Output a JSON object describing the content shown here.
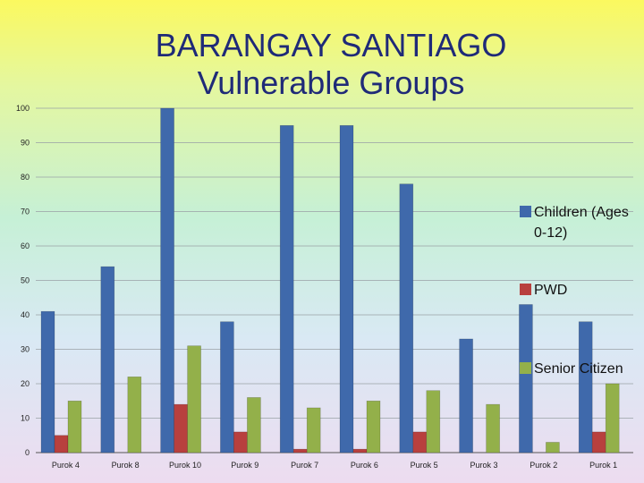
{
  "slide": {
    "title_line1": "BARANGAY SANTIAGO",
    "title_line2": "Vulnerable Groups"
  },
  "colors": {
    "children": "#3f69ab",
    "pwd": "#b8403e",
    "senior": "#93b04a"
  },
  "chart_data": {
    "type": "bar",
    "title": "BARANGAY SANTIAGO Vulnerable Groups",
    "categories": [
      "Purok 4",
      "Purok 8",
      "Purok 10",
      "Purok 9",
      "Purok 7",
      "Purok 6",
      "Purok 5",
      "Purok 3",
      "Purok 2",
      "Purok  1"
    ],
    "series": [
      {
        "name": "Children  (Ages 0-12)",
        "legend_lines": [
          "Children  (Ages",
          "0-12)"
        ],
        "values": [
          41,
          54,
          100,
          38,
          95,
          95,
          78,
          33,
          43,
          38
        ]
      },
      {
        "name": "PWD",
        "legend_lines": [
          "PWD"
        ],
        "values": [
          5,
          0,
          14,
          6,
          1,
          1,
          6,
          0,
          0,
          6
        ]
      },
      {
        "name": "Senior Citizen",
        "legend_lines": [
          "Senior Citizen"
        ],
        "values": [
          15,
          22,
          31,
          16,
          13,
          15,
          18,
          14,
          3,
          20
        ]
      }
    ],
    "ylim": [
      0,
      100
    ],
    "yticks": [
      0,
      10,
      20,
      30,
      40,
      50,
      60,
      70,
      80,
      90,
      100
    ],
    "grid": true,
    "legend_position": "right",
    "xlabel": "",
    "ylabel": ""
  }
}
